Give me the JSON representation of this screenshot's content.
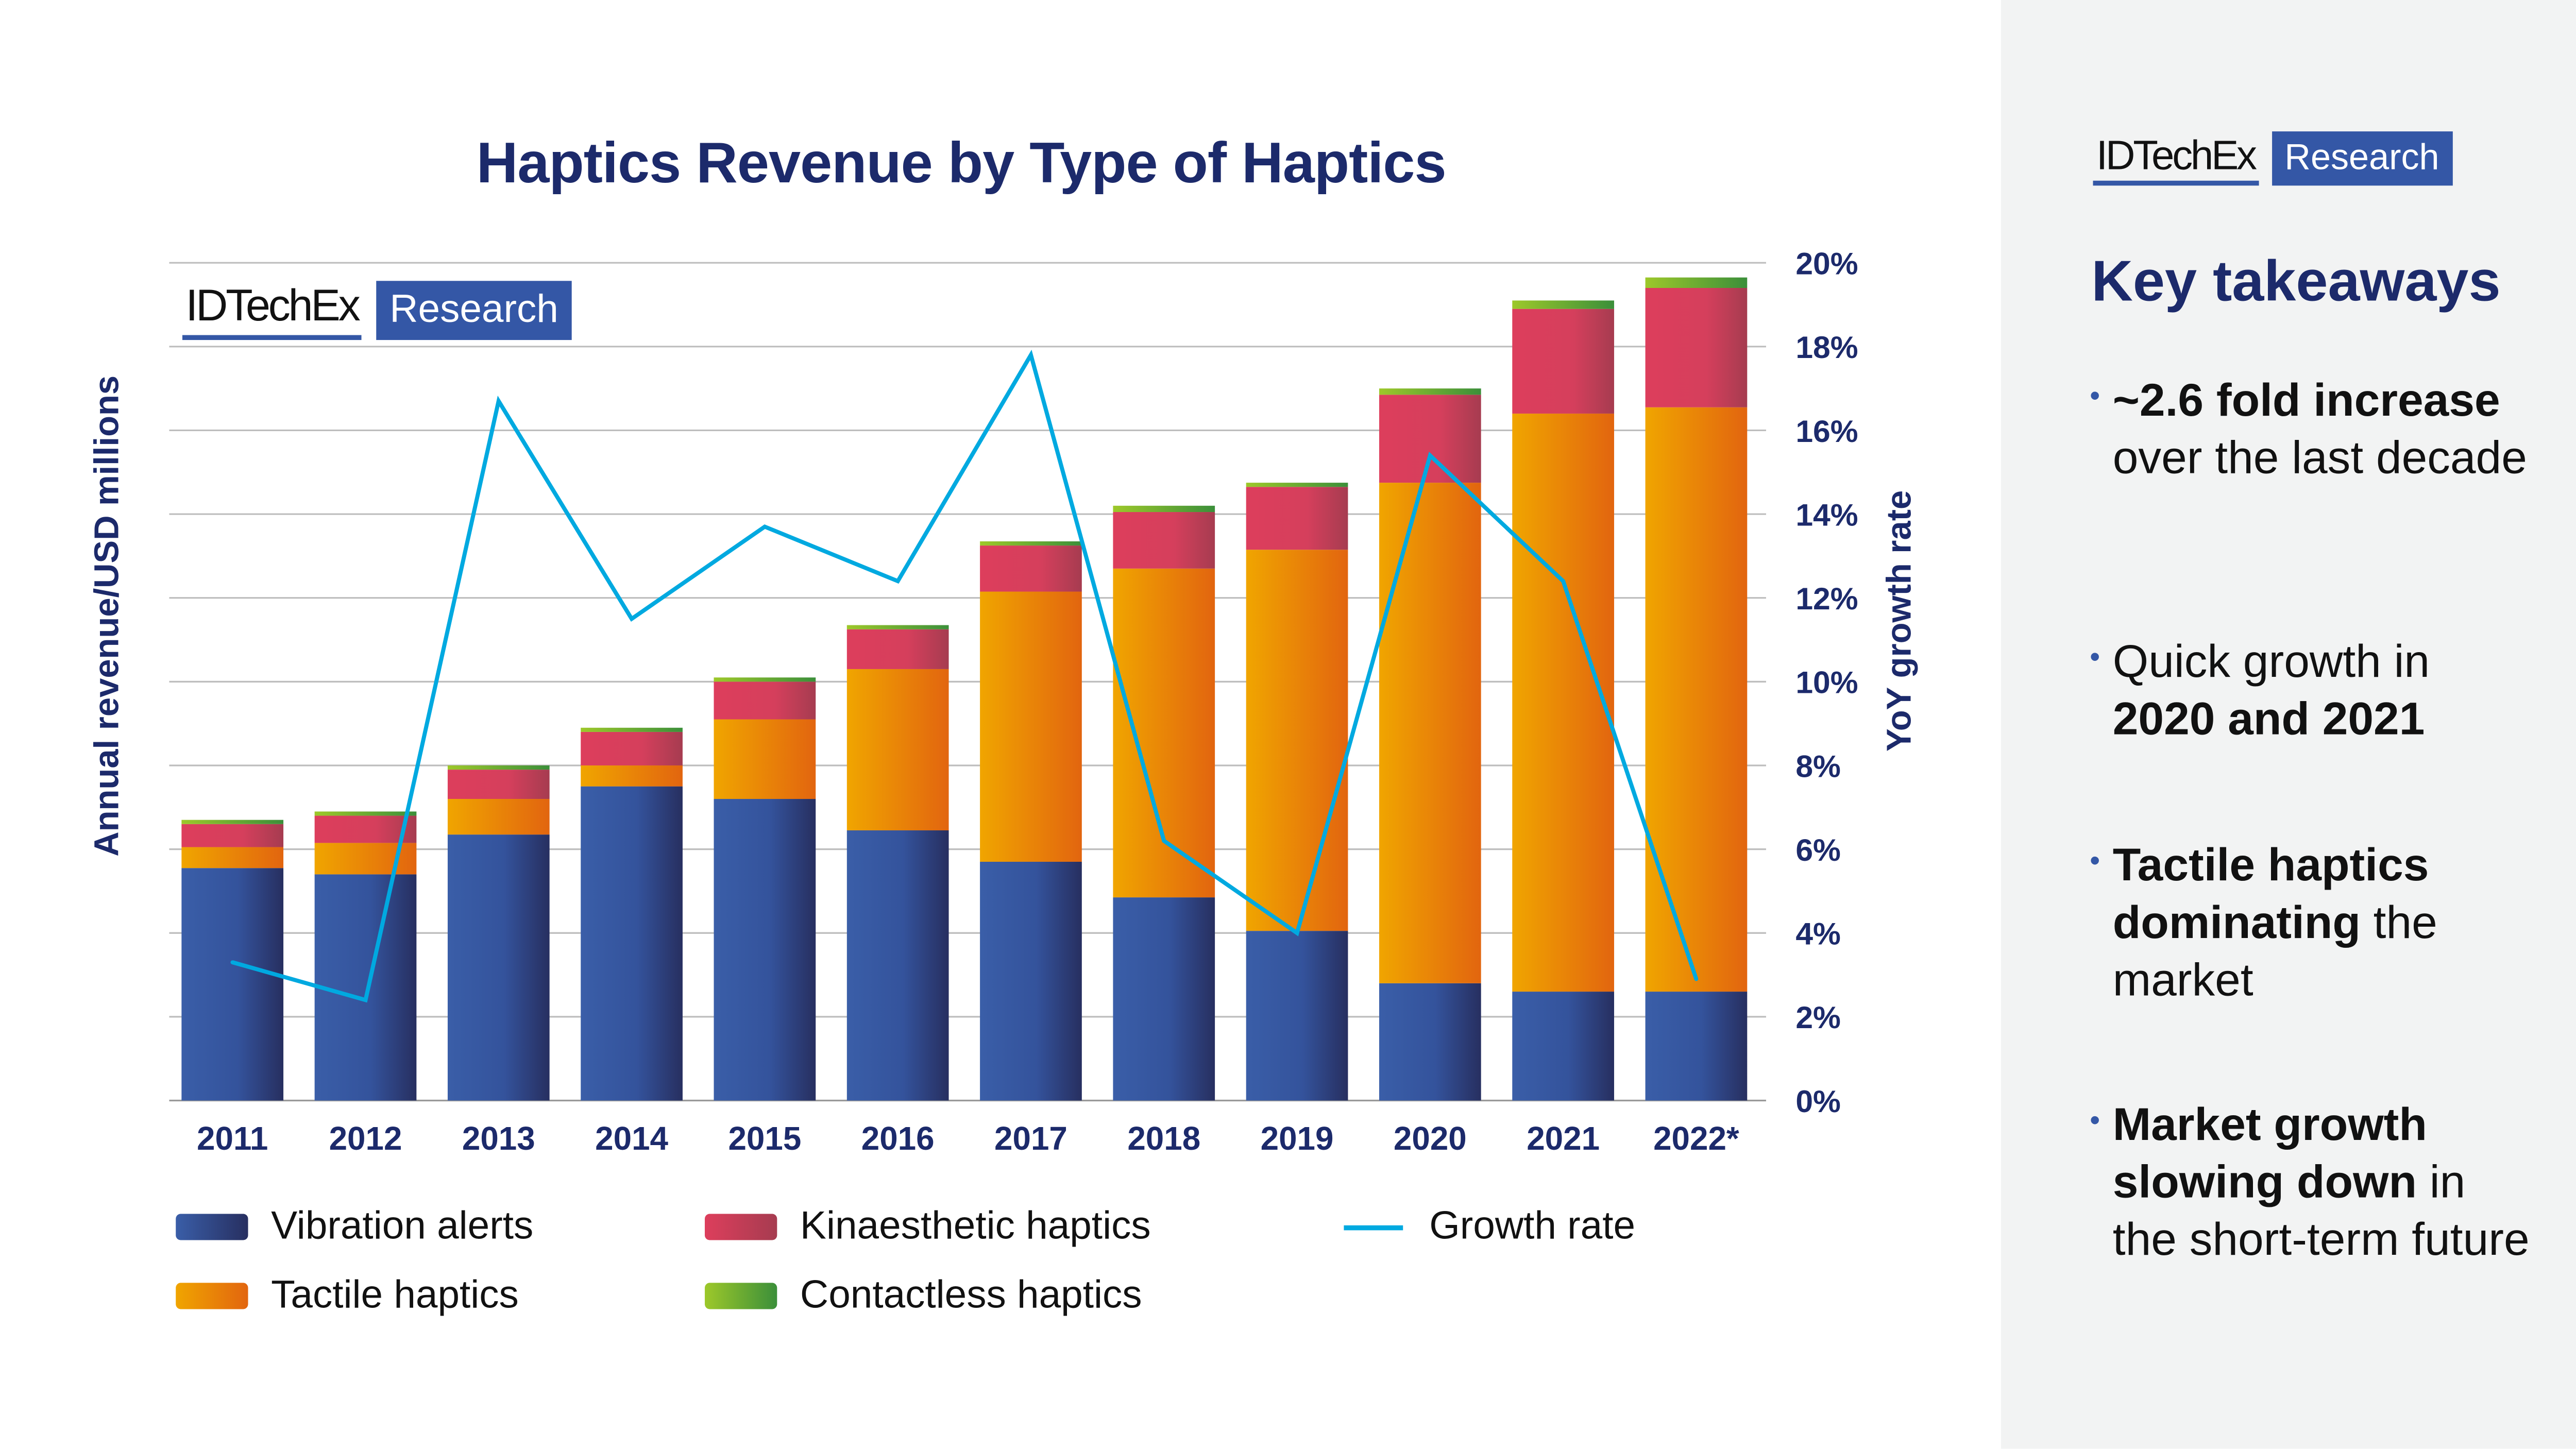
{
  "chart_data": {
    "type": "bar",
    "stacked": true,
    "title": "Haptics Revenue by Type of Haptics",
    "ylabel": "Annual revenue/USD millions",
    "y2label": "YoY growth rate",
    "categories": [
      "2011",
      "2012",
      "2013",
      "2014",
      "2015",
      "2016",
      "2017",
      "2018",
      "2019",
      "2020",
      "2021",
      "2022*"
    ],
    "ylim": [
      0,
      20
    ],
    "y2lim": [
      0,
      20
    ],
    "y2ticks": [
      "0%",
      "2%",
      "4%",
      "6%",
      "8%",
      "10%",
      "12%",
      "14%",
      "16%",
      "18%",
      "20%"
    ],
    "grid": true,
    "legend_position": "bottom",
    "series": [
      {
        "name": "Vibration alerts",
        "type": "bar",
        "color": "#3457a6",
        "values": [
          5.55,
          5.4,
          6.35,
          7.5,
          7.2,
          6.45,
          5.7,
          4.85,
          4.05,
          2.8,
          2.6,
          2.6
        ]
      },
      {
        "name": "Tactile haptics",
        "type": "bar",
        "color": "#ee8a05",
        "values": [
          0.5,
          0.75,
          0.85,
          0.5,
          1.9,
          3.85,
          6.45,
          7.85,
          9.1,
          11.95,
          13.8,
          13.95
        ]
      },
      {
        "name": "Kinaesthetic haptics",
        "type": "bar",
        "color": "#d93f5d",
        "values": [
          0.55,
          0.65,
          0.7,
          0.8,
          0.9,
          0.95,
          1.1,
          1.35,
          1.5,
          2.1,
          2.5,
          2.85
        ]
      },
      {
        "name": "Contactless haptics",
        "type": "bar",
        "color": "#6db33f",
        "values": [
          0.1,
          0.1,
          0.1,
          0.1,
          0.1,
          0.1,
          0.1,
          0.15,
          0.1,
          0.15,
          0.2,
          0.25
        ]
      },
      {
        "name": "Growth rate",
        "type": "line",
        "axis": "right",
        "unit": "%",
        "color": "#00a9e0",
        "values": [
          3.3,
          2.4,
          16.7,
          11.5,
          13.7,
          12.4,
          17.8,
          6.2,
          4.0,
          15.4,
          12.4,
          2.9
        ]
      }
    ]
  },
  "logo": {
    "brand": "IDTechEx",
    "tag": "Research"
  },
  "sidebar": {
    "title": "Key takeaways",
    "takeaways": [
      {
        "parts": [
          {
            "t": "~2.6 fold increase",
            "b": true
          },
          {
            "t": " over the last decade",
            "b": false
          }
        ]
      },
      {
        "parts": [
          {
            "t": "Quick growth in ",
            "b": false
          },
          {
            "t": "2020 and 2021",
            "b": true
          }
        ]
      },
      {
        "parts": [
          {
            "t": "Tactile haptics dominating",
            "b": true
          },
          {
            "t": " the market",
            "b": false
          }
        ]
      },
      {
        "parts": [
          {
            "t": "Market growth slowing down",
            "b": true
          },
          {
            "t": " in the short-term future",
            "b": false
          }
        ]
      }
    ]
  }
}
